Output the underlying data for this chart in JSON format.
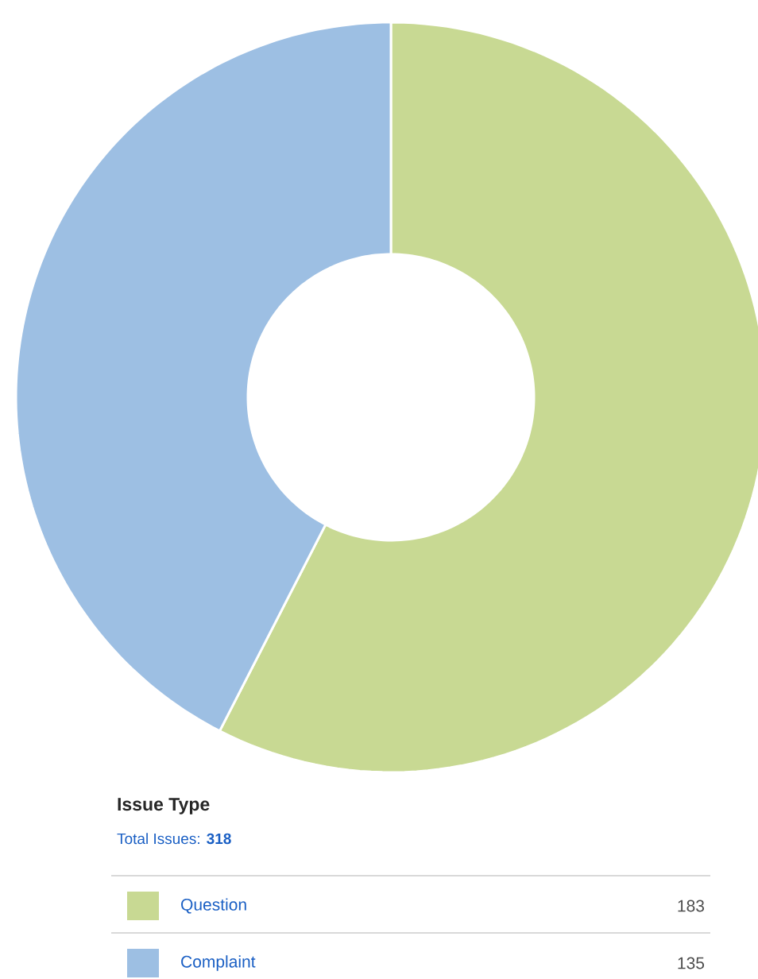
{
  "chart_data": {
    "type": "donut",
    "title": "Issue Type",
    "subtitle": "Total Issues: **318**",
    "categories": [
      "Question",
      "Complaint"
    ],
    "values": [
      183,
      135
    ],
    "colors": [
      "#c8d993",
      "#9dbfe3"
    ],
    "legend": "bottom",
    "data_labels": true
  }
}
